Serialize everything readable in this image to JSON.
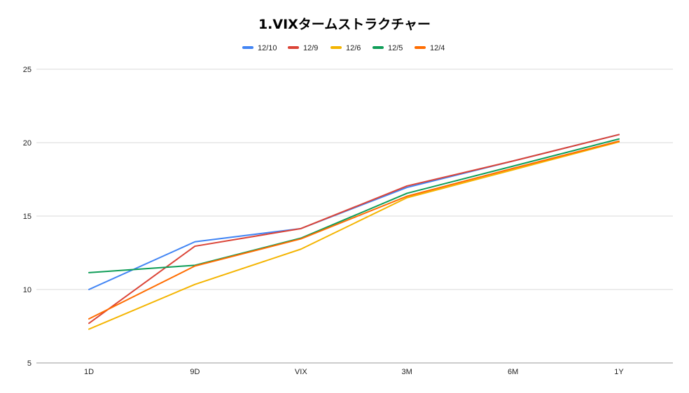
{
  "chart_data": {
    "type": "line",
    "title": "1.VIXタームストラクチャー",
    "categories": [
      "1D",
      "9D",
      "VIX",
      "3M",
      "6M",
      "1Y"
    ],
    "ylim": [
      5,
      25
    ],
    "yticks": [
      5,
      10,
      15,
      20,
      25
    ],
    "grid": true,
    "legend_position": "top",
    "series": [
      {
        "name": "12/10",
        "color": "#4285f4",
        "values": [
          10.0,
          13.25,
          14.15,
          16.95,
          18.75,
          20.55
        ]
      },
      {
        "name": "12/9",
        "color": "#db4437",
        "values": [
          7.7,
          12.95,
          14.15,
          17.05,
          18.75,
          20.55
        ]
      },
      {
        "name": "12/6",
        "color": "#f4b400",
        "values": [
          7.3,
          10.35,
          12.75,
          16.25,
          18.15,
          20.05
        ]
      },
      {
        "name": "12/5",
        "color": "#0f9d58",
        "values": [
          11.15,
          11.65,
          13.5,
          16.55,
          18.4,
          20.25
        ]
      },
      {
        "name": "12/4",
        "color": "#ff6d01",
        "values": [
          8.0,
          11.6,
          13.45,
          16.35,
          18.25,
          20.1
        ]
      }
    ]
  }
}
